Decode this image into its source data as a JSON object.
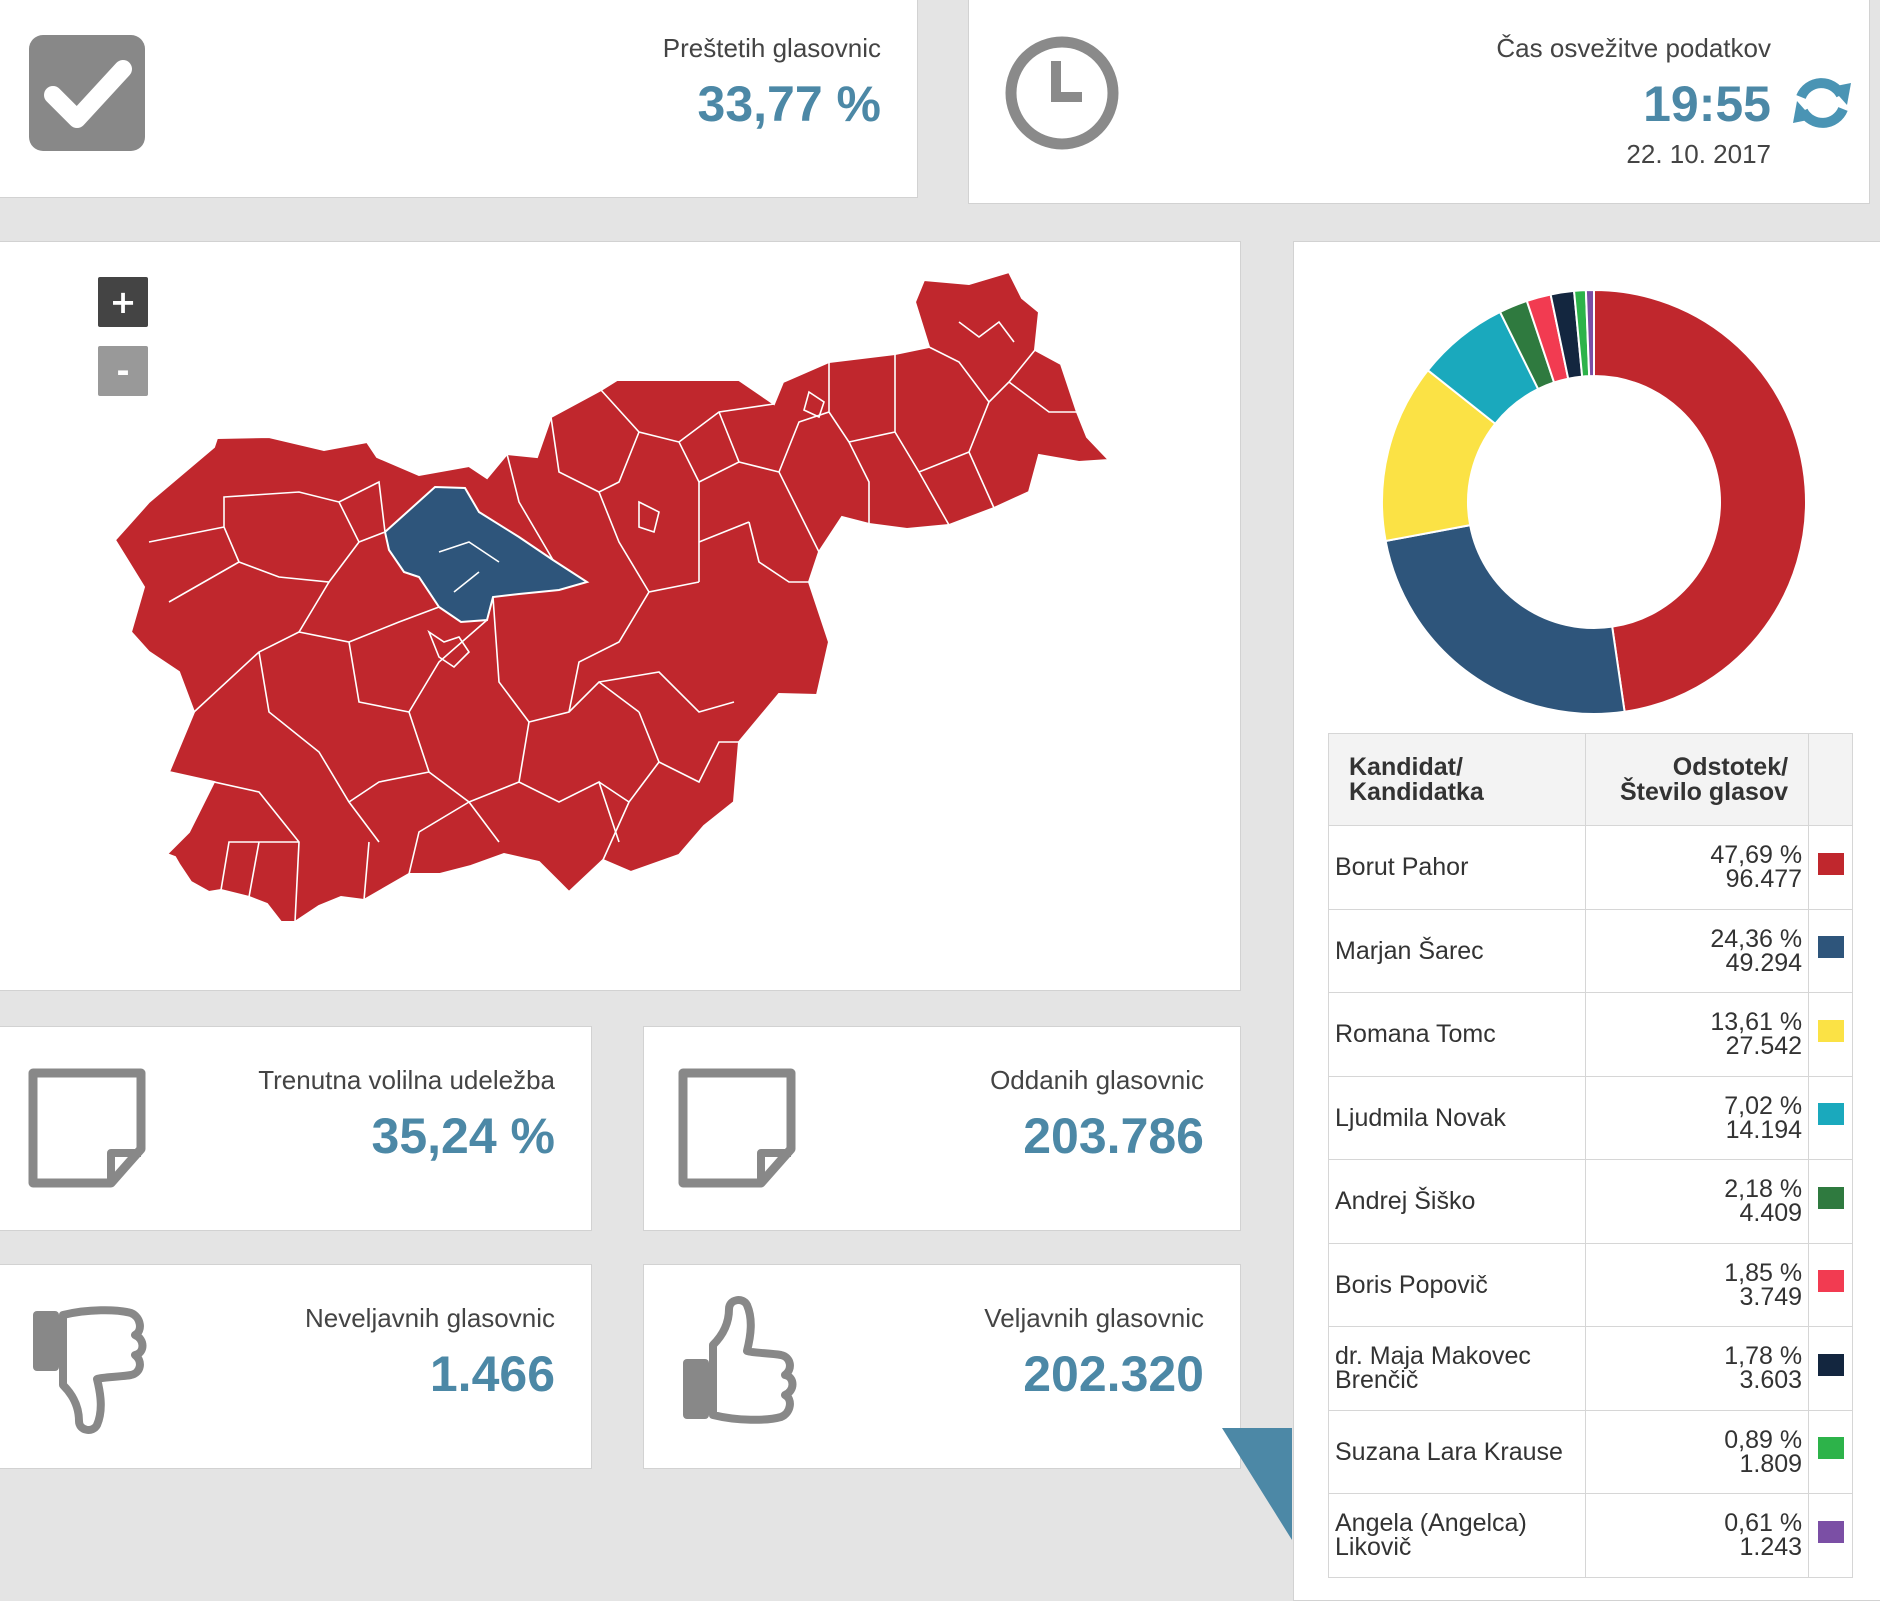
{
  "counted": {
    "label": "Preštetih glasovnic",
    "value": "33,77 %",
    "icon": "checkbox-check-icon"
  },
  "refresh": {
    "label": "Čas osvežitve podatkov",
    "time": "19:55",
    "date": "22. 10. 2017",
    "icon": "clock-icon",
    "refresh_icon": "refresh-icon"
  },
  "map": {
    "zoom_in": "+",
    "zoom_out": "-",
    "colors": {
      "main": "#c0272d",
      "secondary": "#2e557b"
    }
  },
  "stats": [
    {
      "label": "Trenutna volilna udeležba",
      "value": "35,24 %",
      "icon": "document-icon"
    },
    {
      "label": "Oddanih glasovnic",
      "value": "203.786",
      "icon": "document-icon"
    },
    {
      "label": "Neveljavnih glasovnic",
      "value": "1.466",
      "icon": "thumbs-down-icon"
    },
    {
      "label": "Veljavnih glasovnic",
      "value": "202.320",
      "icon": "thumbs-up-icon"
    }
  ],
  "table": {
    "header_candidate": [
      "Kandidat/",
      "Kandidatka"
    ],
    "header_result": [
      "Odstotek/",
      "Število glasov"
    ]
  },
  "chart_data": {
    "type": "pie",
    "donut": true,
    "categories": [
      "Borut Pahor",
      "Marjan Šarec",
      "Romana Tomc",
      "Ljudmila Novak",
      "Andrej Šiško",
      "Boris Popovič",
      "dr. Maja Makovec Brenčič",
      "Suzana Lara Krause",
      "Angela (Angelca) Likovič"
    ],
    "percent_labels": [
      "47,69 %",
      "24,36 %",
      "13,61 %",
      "7,02 %",
      "2,18 %",
      "1,85 %",
      "1,78 %",
      "0,89 %",
      "0,61 %"
    ],
    "votes_labels": [
      "96.477",
      "49.294",
      "27.542",
      "14.194",
      "4.409",
      "3.749",
      "3.603",
      "1.809",
      "1.243"
    ],
    "values": [
      47.69,
      24.36,
      13.61,
      7.02,
      2.18,
      1.85,
      1.78,
      0.89,
      0.61
    ],
    "colors": [
      "#c0272d",
      "#2e557b",
      "#fbe245",
      "#1aa9bd",
      "#2f7a3f",
      "#f23b51",
      "#13263f",
      "#2db34a",
      "#7b4fa5"
    ]
  }
}
